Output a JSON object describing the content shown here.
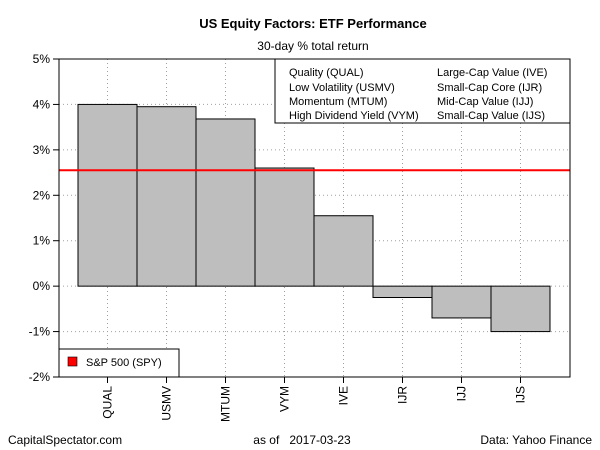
{
  "chart_data": {
    "type": "bar",
    "title": "US Equity Factors: ETF Performance",
    "subtitle": "30-day % total return",
    "categories": [
      "QUAL",
      "USMV",
      "MTUM",
      "VYM",
      "IVE",
      "IJR",
      "IJJ",
      "IJS"
    ],
    "values": [
      4.0,
      3.95,
      3.68,
      2.6,
      1.55,
      -0.25,
      -0.7,
      -1.0
    ],
    "ylim": [
      -2,
      5
    ],
    "yticks": [
      -2,
      -1,
      0,
      1,
      2,
      3,
      4,
      5
    ],
    "ytick_labels": [
      "-2%",
      "-1%",
      "0%",
      "1%",
      "2%",
      "3%",
      "4%",
      "5%"
    ],
    "grid": true,
    "bar_color": "#bebebe",
    "reference_line": {
      "value": 2.55,
      "label": "S&P 500 (SPY)",
      "color": "#ff0000"
    },
    "legend": {
      "placement": "top-right",
      "entries": [
        "Quality (QUAL)",
        "Low Volatility (USMV)",
        "Momentum (MTUM)",
        "High Dividend Yield (VYM)",
        "Large-Cap Value (IVE)",
        "Small-Cap Core (IJR)",
        "Mid-Cap Value (IJJ)",
        "Small-Cap Value (IJS)"
      ]
    },
    "reference_legend_placement": "bottom-left"
  },
  "footer": {
    "left": "CapitalSpectator.com",
    "center_prefix": "as of",
    "center_date": "2017-03-23",
    "right": "Data: Yahoo Finance"
  }
}
